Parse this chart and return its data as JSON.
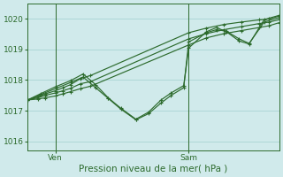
{
  "title": "Pression niveau de la mer( hPa )",
  "bg_color": "#d0eaeb",
  "grid_color": "#a8d4d4",
  "line_color": "#2d6b2d",
  "axis_color": "#2d6b2d",
  "ylim": [
    1015.7,
    1020.5
  ],
  "yticks": [
    1016,
    1017,
    1018,
    1019,
    1020
  ],
  "xlim": [
    0,
    100
  ],
  "ven_x": 11,
  "sam_x": 64,
  "series": [
    {
      "x": [
        0,
        4,
        7,
        11,
        14,
        17,
        21,
        25,
        64,
        71,
        78,
        85,
        92,
        96,
        100
      ],
      "y": [
        1017.35,
        1017.45,
        1017.55,
        1017.65,
        1017.75,
        1017.85,
        1018.05,
        1018.15,
        1019.55,
        1019.7,
        1019.82,
        1019.9,
        1019.97,
        1020.0,
        1020.1
      ]
    },
    {
      "x": [
        0,
        4,
        7,
        11,
        14,
        17,
        21,
        25,
        64,
        71,
        78,
        85,
        92,
        96,
        100
      ],
      "y": [
        1017.35,
        1017.42,
        1017.5,
        1017.58,
        1017.65,
        1017.73,
        1017.88,
        1017.95,
        1019.35,
        1019.52,
        1019.65,
        1019.75,
        1019.85,
        1019.9,
        1019.98
      ]
    },
    {
      "x": [
        0,
        4,
        7,
        11,
        14,
        17,
        21,
        25,
        64,
        71,
        78,
        85,
        92,
        96,
        100
      ],
      "y": [
        1017.35,
        1017.38,
        1017.42,
        1017.48,
        1017.55,
        1017.62,
        1017.72,
        1017.8,
        1019.15,
        1019.38,
        1019.52,
        1019.62,
        1019.72,
        1019.78,
        1019.88
      ]
    },
    {
      "x": [
        0,
        5,
        11,
        17,
        22,
        27,
        32,
        37,
        43,
        48,
        53,
        57,
        62,
        64,
        71,
        75,
        79,
        84,
        88,
        94,
        100
      ],
      "y": [
        1017.35,
        1017.52,
        1017.72,
        1017.92,
        1018.1,
        1017.75,
        1017.4,
        1017.05,
        1016.7,
        1016.9,
        1017.25,
        1017.5,
        1017.75,
        1019.25,
        1019.55,
        1019.65,
        1019.6,
        1019.35,
        1019.2,
        1019.9,
        1020.05
      ]
    },
    {
      "x": [
        0,
        5,
        11,
        17,
        22,
        27,
        32,
        37,
        43,
        48,
        53,
        57,
        62,
        64,
        71,
        75,
        79,
        84,
        88,
        94,
        100
      ],
      "y": [
        1017.35,
        1017.55,
        1017.78,
        1017.98,
        1018.2,
        1017.85,
        1017.42,
        1017.08,
        1016.72,
        1016.95,
        1017.35,
        1017.58,
        1017.82,
        1019.05,
        1019.58,
        1019.72,
        1019.58,
        1019.28,
        1019.18,
        1019.98,
        1020.12
      ]
    }
  ]
}
